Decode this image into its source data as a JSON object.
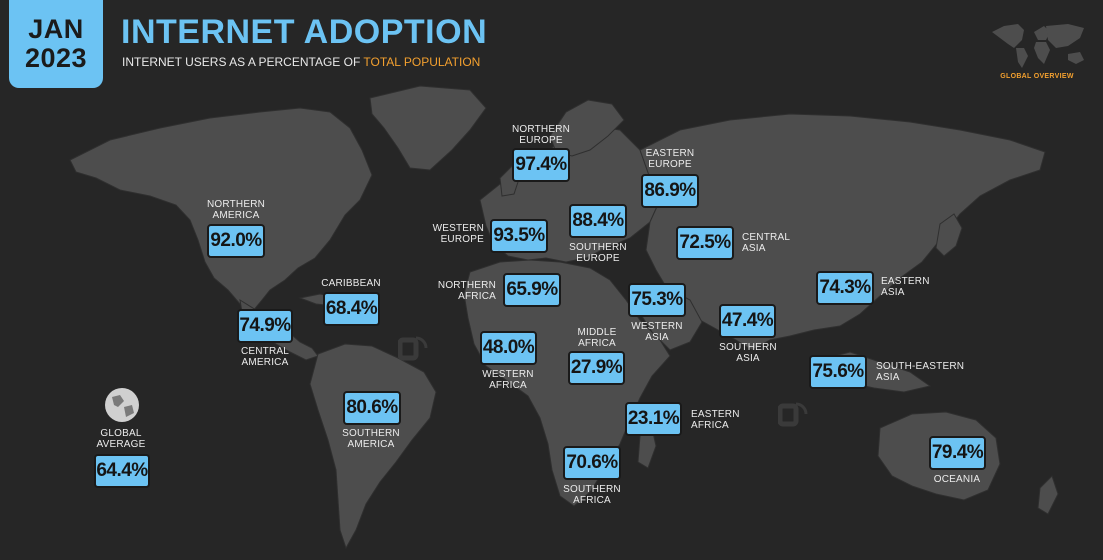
{
  "header": {
    "month": "JAN",
    "year": "2023",
    "title": "INTERNET ADOPTION",
    "subtitle_prefix": "INTERNET USERS AS A PERCENTAGE OF ",
    "subtitle_highlight": "TOTAL POPULATION",
    "overview_label": "GLOBAL OVERVIEW"
  },
  "colors": {
    "background": "#262626",
    "land": "#4d4d4d",
    "accent": "#6cc3f3",
    "highlight": "#f3a02f"
  },
  "icons": [
    "world-map-icon",
    "globe-icon",
    "watermark-logo-icon"
  ],
  "regions": {
    "northern_america": {
      "label1": "NORTHERN",
      "label2": "AMERICA",
      "value": "92.0%"
    },
    "caribbean": {
      "label1": "CARIBBEAN",
      "label2": "",
      "value": "68.4%"
    },
    "central_america": {
      "label1": "CENTRAL",
      "label2": "AMERICA",
      "value": "74.9%"
    },
    "southern_america": {
      "label1": "SOUTHERN",
      "label2": "AMERICA",
      "value": "80.6%"
    },
    "northern_europe": {
      "label1": "NORTHERN",
      "label2": "EUROPE",
      "value": "97.4%"
    },
    "western_europe": {
      "label1": "WESTERN",
      "label2": "EUROPE",
      "value": "93.5%"
    },
    "southern_europe": {
      "label1": "SOUTHERN",
      "label2": "EUROPE",
      "value": "88.4%"
    },
    "eastern_europe": {
      "label1": "EASTERN",
      "label2": "EUROPE",
      "value": "86.9%"
    },
    "northern_africa": {
      "label1": "NORTHERN",
      "label2": "AFRICA",
      "value": "65.9%"
    },
    "western_africa": {
      "label1": "WESTERN",
      "label2": "AFRICA",
      "value": "48.0%"
    },
    "middle_africa": {
      "label1": "MIDDLE",
      "label2": "AFRICA",
      "value": "27.9%"
    },
    "eastern_africa": {
      "label1": "EASTERN",
      "label2": "AFRICA",
      "value": "23.1%"
    },
    "southern_africa": {
      "label1": "SOUTHERN",
      "label2": "AFRICA",
      "value": "70.6%"
    },
    "western_asia": {
      "label1": "WESTERN",
      "label2": "ASIA",
      "value": "75.3%"
    },
    "central_asia": {
      "label1": "CENTRAL",
      "label2": "ASIA",
      "value": "72.5%"
    },
    "southern_asia": {
      "label1": "SOUTHERN",
      "label2": "ASIA",
      "value": "47.4%"
    },
    "eastern_asia": {
      "label1": "EASTERN",
      "label2": "ASIA",
      "value": "74.3%"
    },
    "south_eastern_asia": {
      "label1": "SOUTH-EASTERN",
      "label2": "ASIA",
      "value": "75.6%"
    },
    "oceania": {
      "label1": "OCEANIA",
      "label2": "",
      "value": "79.4%"
    },
    "global_average": {
      "label1": "GLOBAL",
      "label2": "AVERAGE",
      "value": "64.4%"
    }
  }
}
